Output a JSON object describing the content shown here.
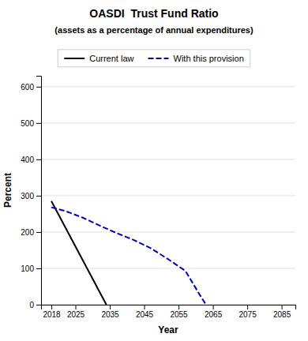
{
  "chart_data": {
    "type": "line",
    "title": "OASDI  Trust Fund Ratio",
    "subtitle": "(assets as a percentage of annual expenditures)",
    "x_label": "Year",
    "y_label": "Percent",
    "xlim": [
      2015,
      2089
    ],
    "ylim": [
      0,
      630
    ],
    "xticks": [
      2018,
      2025,
      2035,
      2045,
      2055,
      2065,
      2075,
      2085
    ],
    "yticks": [
      0,
      100,
      200,
      300,
      400,
      500,
      600
    ],
    "grid": "y",
    "legend": "top",
    "series": [
      {
        "name": "Current law",
        "color": "#000000",
        "line_style": "solid",
        "x": [
          2018,
          2034
        ],
        "values": [
          285,
          0
        ]
      },
      {
        "name": "With this provision",
        "color": "#0000cc",
        "line_style": "dashed",
        "x": [
          2018,
          2022,
          2027,
          2032,
          2037,
          2042,
          2047,
          2052,
          2057,
          2061,
          2063
        ],
        "values": [
          268,
          258,
          240,
          218,
          197,
          178,
          155,
          125,
          93,
          30,
          0
        ]
      }
    ]
  }
}
